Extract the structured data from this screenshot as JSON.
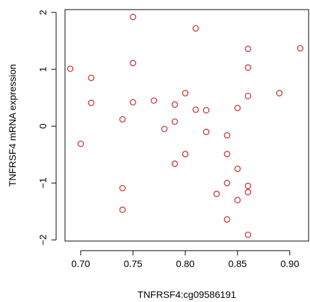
{
  "chart_data": {
    "type": "scatter",
    "xlabel": "TNFRSF4:cg09586191",
    "ylabel": "TNFRSF4 mRNA expression",
    "xlim": [
      0.685,
      0.918
    ],
    "ylim": [
      -2.02,
      2.05
    ],
    "x_ticks": [
      0.7,
      0.75,
      0.8,
      0.85,
      0.9
    ],
    "x_tick_labels": [
      "0.70",
      "0.75",
      "0.80",
      "0.85",
      "0.90"
    ],
    "y_ticks": [
      -2,
      -1,
      0,
      1,
      2
    ],
    "y_tick_labels": [
      "−2",
      "−1",
      "0",
      "1",
      "2"
    ],
    "point_color": "#cc3333",
    "grid": false,
    "series": [
      {
        "x": [
          0.75,
          0.81,
          0.86,
          0.91,
          0.69,
          0.75,
          0.86,
          0.71,
          0.8,
          0.89,
          0.86,
          0.71,
          0.75,
          0.77,
          0.79,
          0.81,
          0.82,
          0.85,
          0.74,
          0.79,
          0.78,
          0.82,
          0.84,
          0.7,
          0.8,
          0.84,
          0.79,
          0.85,
          0.84,
          0.86,
          0.74,
          0.86,
          0.83,
          0.85,
          0.74,
          0.84,
          0.86
        ],
        "y": [
          1.92,
          1.72,
          1.36,
          1.37,
          1.01,
          1.11,
          1.03,
          0.85,
          0.58,
          0.58,
          0.53,
          0.41,
          0.42,
          0.45,
          0.38,
          0.29,
          0.28,
          0.32,
          0.12,
          0.08,
          -0.05,
          -0.1,
          -0.16,
          -0.31,
          -0.49,
          -0.49,
          -0.66,
          -0.75,
          -1.0,
          -1.05,
          -1.09,
          -1.16,
          -1.19,
          -1.3,
          -1.47,
          -1.64,
          -1.91
        ]
      }
    ]
  }
}
